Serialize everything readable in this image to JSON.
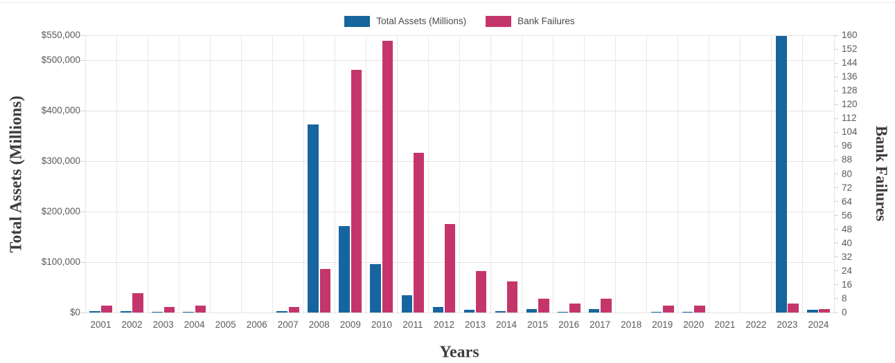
{
  "legend": {
    "items": [
      {
        "label": "Total Assets (Millions)",
        "color": "#16659E"
      },
      {
        "label": "Bank Failures",
        "color": "#C4366B"
      }
    ]
  },
  "chart_data": {
    "type": "bar",
    "title": "",
    "xlabel": "Years",
    "ylabel_left": "Total Assets (Millions)",
    "ylabel_right": "Bank Failures",
    "categories": [
      "2001",
      "2002",
      "2003",
      "2004",
      "2005",
      "2006",
      "2007",
      "2008",
      "2009",
      "2010",
      "2011",
      "2012",
      "2013",
      "2014",
      "2015",
      "2016",
      "2017",
      "2018",
      "2019",
      "2020",
      "2021",
      "2022",
      "2023",
      "2024"
    ],
    "series": [
      {
        "name": "Total Assets (Millions)",
        "axis": "left",
        "color": "#16659E",
        "values": [
          2359,
          2705,
          1045,
          170,
          0,
          0,
          2615,
          373589,
          170909,
          96514,
          34923,
          11617,
          6044,
          2914,
          6727,
          277,
          6531,
          0,
          214,
          458,
          0,
          0,
          548705,
          5974
        ]
      },
      {
        "name": "Bank Failures",
        "axis": "right",
        "color": "#C4366B",
        "values": [
          4,
          11,
          3,
          4,
          0,
          0,
          3,
          25,
          140,
          157,
          92,
          51,
          24,
          18,
          8,
          5,
          8,
          0,
          4,
          4,
          0,
          0,
          5,
          2
        ]
      }
    ],
    "axes": {
      "left": {
        "range": [
          0,
          550000
        ],
        "ticks": [
          {
            "value": 0,
            "label": "$0"
          },
          {
            "value": 100000,
            "label": "$100,000"
          },
          {
            "value": 200000,
            "label": "$200,000"
          },
          {
            "value": 300000,
            "label": "$300,000"
          },
          {
            "value": 400000,
            "label": "$400,000"
          },
          {
            "value": 500000,
            "label": "$500,000"
          },
          {
            "value": 550000,
            "label": "$550,000"
          }
        ]
      },
      "right": {
        "range": [
          0,
          160
        ],
        "ticks": [
          {
            "value": 0,
            "label": "0"
          },
          {
            "value": 8,
            "label": "8"
          },
          {
            "value": 16,
            "label": "16"
          },
          {
            "value": 24,
            "label": "24"
          },
          {
            "value": 32,
            "label": "32"
          },
          {
            "value": 40,
            "label": "40"
          },
          {
            "value": 48,
            "label": "48"
          },
          {
            "value": 56,
            "label": "56"
          },
          {
            "value": 64,
            "label": "64"
          },
          {
            "value": 72,
            "label": "72"
          },
          {
            "value": 80,
            "label": "80"
          },
          {
            "value": 88,
            "label": "88"
          },
          {
            "value": 96,
            "label": "96"
          },
          {
            "value": 104,
            "label": "104"
          },
          {
            "value": 112,
            "label": "112"
          },
          {
            "value": 120,
            "label": "120"
          },
          {
            "value": 128,
            "label": "128"
          },
          {
            "value": 136,
            "label": "136"
          },
          {
            "value": 144,
            "label": "144"
          },
          {
            "value": 152,
            "label": "152"
          },
          {
            "value": 160,
            "label": "160"
          }
        ]
      }
    },
    "grid": {
      "horizontal": true,
      "vertical": true,
      "color": "#e2e2e2"
    },
    "legend_position": "top"
  }
}
